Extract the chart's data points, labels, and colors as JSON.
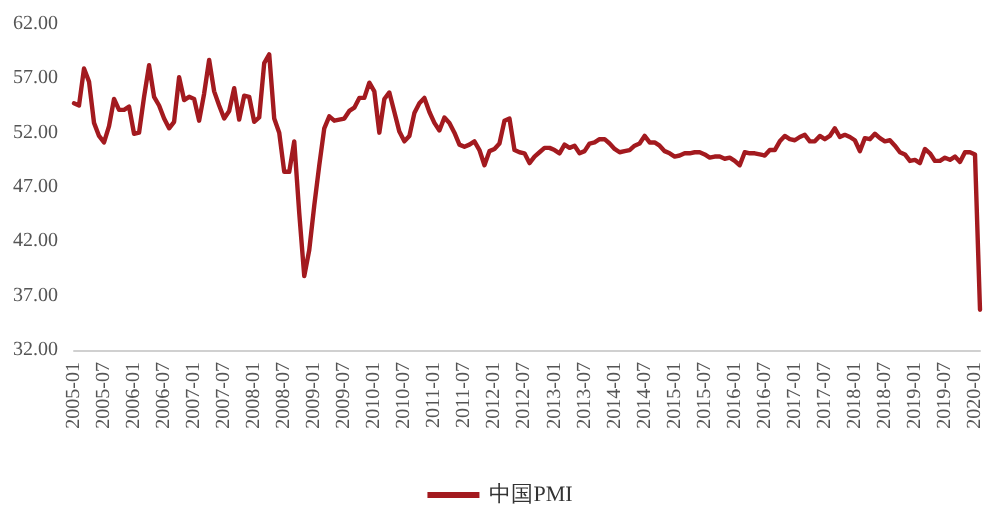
{
  "chart_data": {
    "type": "line",
    "categories": [
      "2005-01",
      null,
      null,
      null,
      null,
      null,
      "2005-07",
      null,
      null,
      null,
      null,
      null,
      "2006-01",
      null,
      null,
      null,
      null,
      null,
      "2006-07",
      null,
      null,
      null,
      null,
      null,
      "2007-01",
      null,
      null,
      null,
      null,
      null,
      "2007-07",
      null,
      null,
      null,
      null,
      null,
      "2008-01",
      null,
      null,
      null,
      null,
      null,
      "2008-07",
      null,
      null,
      null,
      null,
      null,
      "2009-01",
      null,
      null,
      null,
      null,
      null,
      "2009-07",
      null,
      null,
      null,
      null,
      null,
      "2010-01",
      null,
      null,
      null,
      null,
      null,
      "2010-07",
      null,
      null,
      null,
      null,
      null,
      "2011-01",
      null,
      null,
      null,
      null,
      null,
      "2011-07",
      null,
      null,
      null,
      null,
      null,
      "2012-01",
      null,
      null,
      null,
      null,
      null,
      "2012-07",
      null,
      null,
      null,
      null,
      null,
      "2013-01",
      null,
      null,
      null,
      null,
      null,
      "2013-07",
      null,
      null,
      null,
      null,
      null,
      "2014-01",
      null,
      null,
      null,
      null,
      null,
      "2014-07",
      null,
      null,
      null,
      null,
      null,
      "2015-01",
      null,
      null,
      null,
      null,
      null,
      "2015-07",
      null,
      null,
      null,
      null,
      null,
      "2016-01",
      null,
      null,
      null,
      null,
      null,
      "2016-07",
      null,
      null,
      null,
      null,
      null,
      "2017-01",
      null,
      null,
      null,
      null,
      null,
      "2017-07",
      null,
      null,
      null,
      null,
      null,
      "2018-01",
      null,
      null,
      null,
      null,
      null,
      "2018-07",
      null,
      null,
      null,
      null,
      null,
      "2019-01",
      null,
      null,
      null,
      null,
      null,
      "2019-07",
      null,
      null,
      null,
      null,
      null,
      "2020-01",
      null
    ],
    "series": [
      {
        "name": "中国PMI",
        "color": "#a31a1f",
        "values": [
          54.7,
          54.5,
          57.9,
          56.7,
          52.9,
          51.7,
          51.1,
          52.6,
          55.1,
          54.1,
          54.1,
          54.4,
          51.9,
          52.0,
          55.3,
          58.2,
          55.3,
          54.5,
          53.3,
          52.4,
          53.0,
          57.1,
          55.0,
          55.3,
          55.1,
          53.1,
          55.6,
          58.7,
          55.8,
          54.5,
          53.3,
          54.0,
          56.1,
          53.2,
          55.4,
          55.3,
          53.0,
          53.4,
          58.4,
          59.2,
          53.3,
          52.0,
          48.4,
          48.4,
          51.2,
          44.6,
          38.8,
          41.2,
          45.3,
          49.0,
          52.4,
          53.5,
          53.1,
          53.2,
          53.3,
          54.0,
          54.3,
          55.2,
          55.2,
          56.6,
          55.8,
          52.0,
          55.1,
          55.7,
          53.9,
          52.1,
          51.2,
          51.7,
          53.8,
          54.7,
          55.2,
          53.9,
          52.9,
          52.2,
          53.4,
          52.9,
          52.0,
          50.9,
          50.7,
          50.9,
          51.2,
          50.4,
          49.0,
          50.3,
          50.5,
          51.0,
          53.1,
          53.3,
          50.4,
          50.2,
          50.1,
          49.2,
          49.8,
          50.2,
          50.6,
          50.6,
          50.4,
          50.1,
          50.9,
          50.6,
          50.8,
          50.1,
          50.3,
          51.0,
          51.1,
          51.4,
          51.4,
          51.0,
          50.5,
          50.2,
          50.3,
          50.4,
          50.8,
          51.0,
          51.7,
          51.1,
          51.1,
          50.8,
          50.3,
          50.1,
          49.8,
          49.9,
          50.1,
          50.1,
          50.2,
          50.2,
          50.0,
          49.7,
          49.8,
          49.8,
          49.6,
          49.7,
          49.4,
          49.0,
          50.2,
          50.1,
          50.1,
          50.0,
          49.9,
          50.4,
          50.4,
          51.2,
          51.7,
          51.4,
          51.3,
          51.6,
          51.8,
          51.2,
          51.2,
          51.7,
          51.4,
          51.7,
          52.4,
          51.6,
          51.8,
          51.6,
          51.3,
          50.3,
          51.5,
          51.4,
          51.9,
          51.5,
          51.2,
          51.3,
          50.8,
          50.2,
          50.0,
          49.4,
          49.5,
          49.2,
          50.5,
          50.1,
          49.4,
          49.4,
          49.7,
          49.5,
          49.8,
          49.3,
          50.2,
          50.2,
          50.0,
          35.7
        ]
      }
    ],
    "ylim": [
      32,
      62
    ],
    "yticks": [
      {
        "value": 32,
        "label": "32.00"
      },
      {
        "value": 37,
        "label": "37.00"
      },
      {
        "value": 42,
        "label": "42.00"
      },
      {
        "value": 47,
        "label": "47.00"
      },
      {
        "value": 52,
        "label": "52.00"
      },
      {
        "value": 57,
        "label": "57.00"
      },
      {
        "value": 62,
        "label": "62.00"
      }
    ],
    "grid": false,
    "legend": "bottom",
    "marker": "none",
    "line_style": "solid"
  }
}
